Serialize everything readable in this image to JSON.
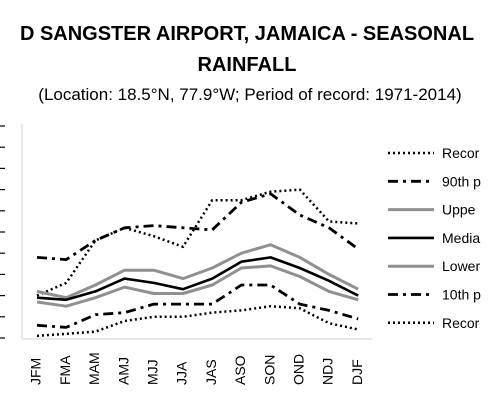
{
  "chart_data": {
    "type": "line",
    "title_line1": "D SANGSTER AIRPORT, JAMAICA - SEASONAL",
    "title_line2": "RAINFALL",
    "subtitle": "(Location: 18.5°N, 77.9°W; Period of record: 1971-2014)",
    "categories": [
      "JFM",
      "FMA",
      "MAM",
      "AMJ",
      "MJJ",
      "JJA",
      "JAS",
      "ASO",
      "SON",
      "OND",
      "NDJ",
      "DJF"
    ],
    "ylim": [
      0,
      10
    ],
    "grid": false,
    "legend_position": "right",
    "series": [
      {
        "name": "Recor",
        "style": "dotted",
        "color": "#000000",
        "values": [
          2.0,
          2.6,
          4.6,
          5.2,
          4.8,
          4.3,
          6.5,
          6.5,
          6.9,
          7.0,
          5.5,
          5.4
        ]
      },
      {
        "name": "90th p",
        "style": "dashdot",
        "color": "#000000",
        "values": [
          3.8,
          3.7,
          4.6,
          5.2,
          5.3,
          5.2,
          5.1,
          6.4,
          6.8,
          5.8,
          5.2,
          4.2
        ]
      },
      {
        "name": "Uppe",
        "style": "solid-thick",
        "color": "#909090",
        "values": [
          2.2,
          1.9,
          2.5,
          3.2,
          3.2,
          2.8,
          3.3,
          4.0,
          4.4,
          3.8,
          3.0,
          2.3
        ]
      },
      {
        "name": "Media",
        "style": "solid",
        "color": "#000000",
        "values": [
          1.9,
          1.8,
          2.2,
          2.8,
          2.6,
          2.3,
          2.8,
          3.6,
          3.8,
          3.3,
          2.7,
          2.0
        ]
      },
      {
        "name": "Lower",
        "style": "solid-thick",
        "color": "#909090",
        "values": [
          1.7,
          1.5,
          1.9,
          2.4,
          2.1,
          2.1,
          2.5,
          3.3,
          3.4,
          2.9,
          2.2,
          1.8
        ]
      },
      {
        "name": "10th p",
        "style": "dashdot",
        "color": "#000000",
        "values": [
          0.6,
          0.5,
          1.1,
          1.2,
          1.6,
          1.6,
          1.6,
          2.5,
          2.5,
          1.6,
          1.3,
          0.9
        ]
      },
      {
        "name": "Recor",
        "style": "dotted",
        "color": "#000000",
        "values": [
          0.1,
          0.2,
          0.3,
          0.8,
          1.0,
          1.0,
          1.2,
          1.3,
          1.5,
          1.4,
          0.7,
          0.4
        ]
      }
    ]
  }
}
